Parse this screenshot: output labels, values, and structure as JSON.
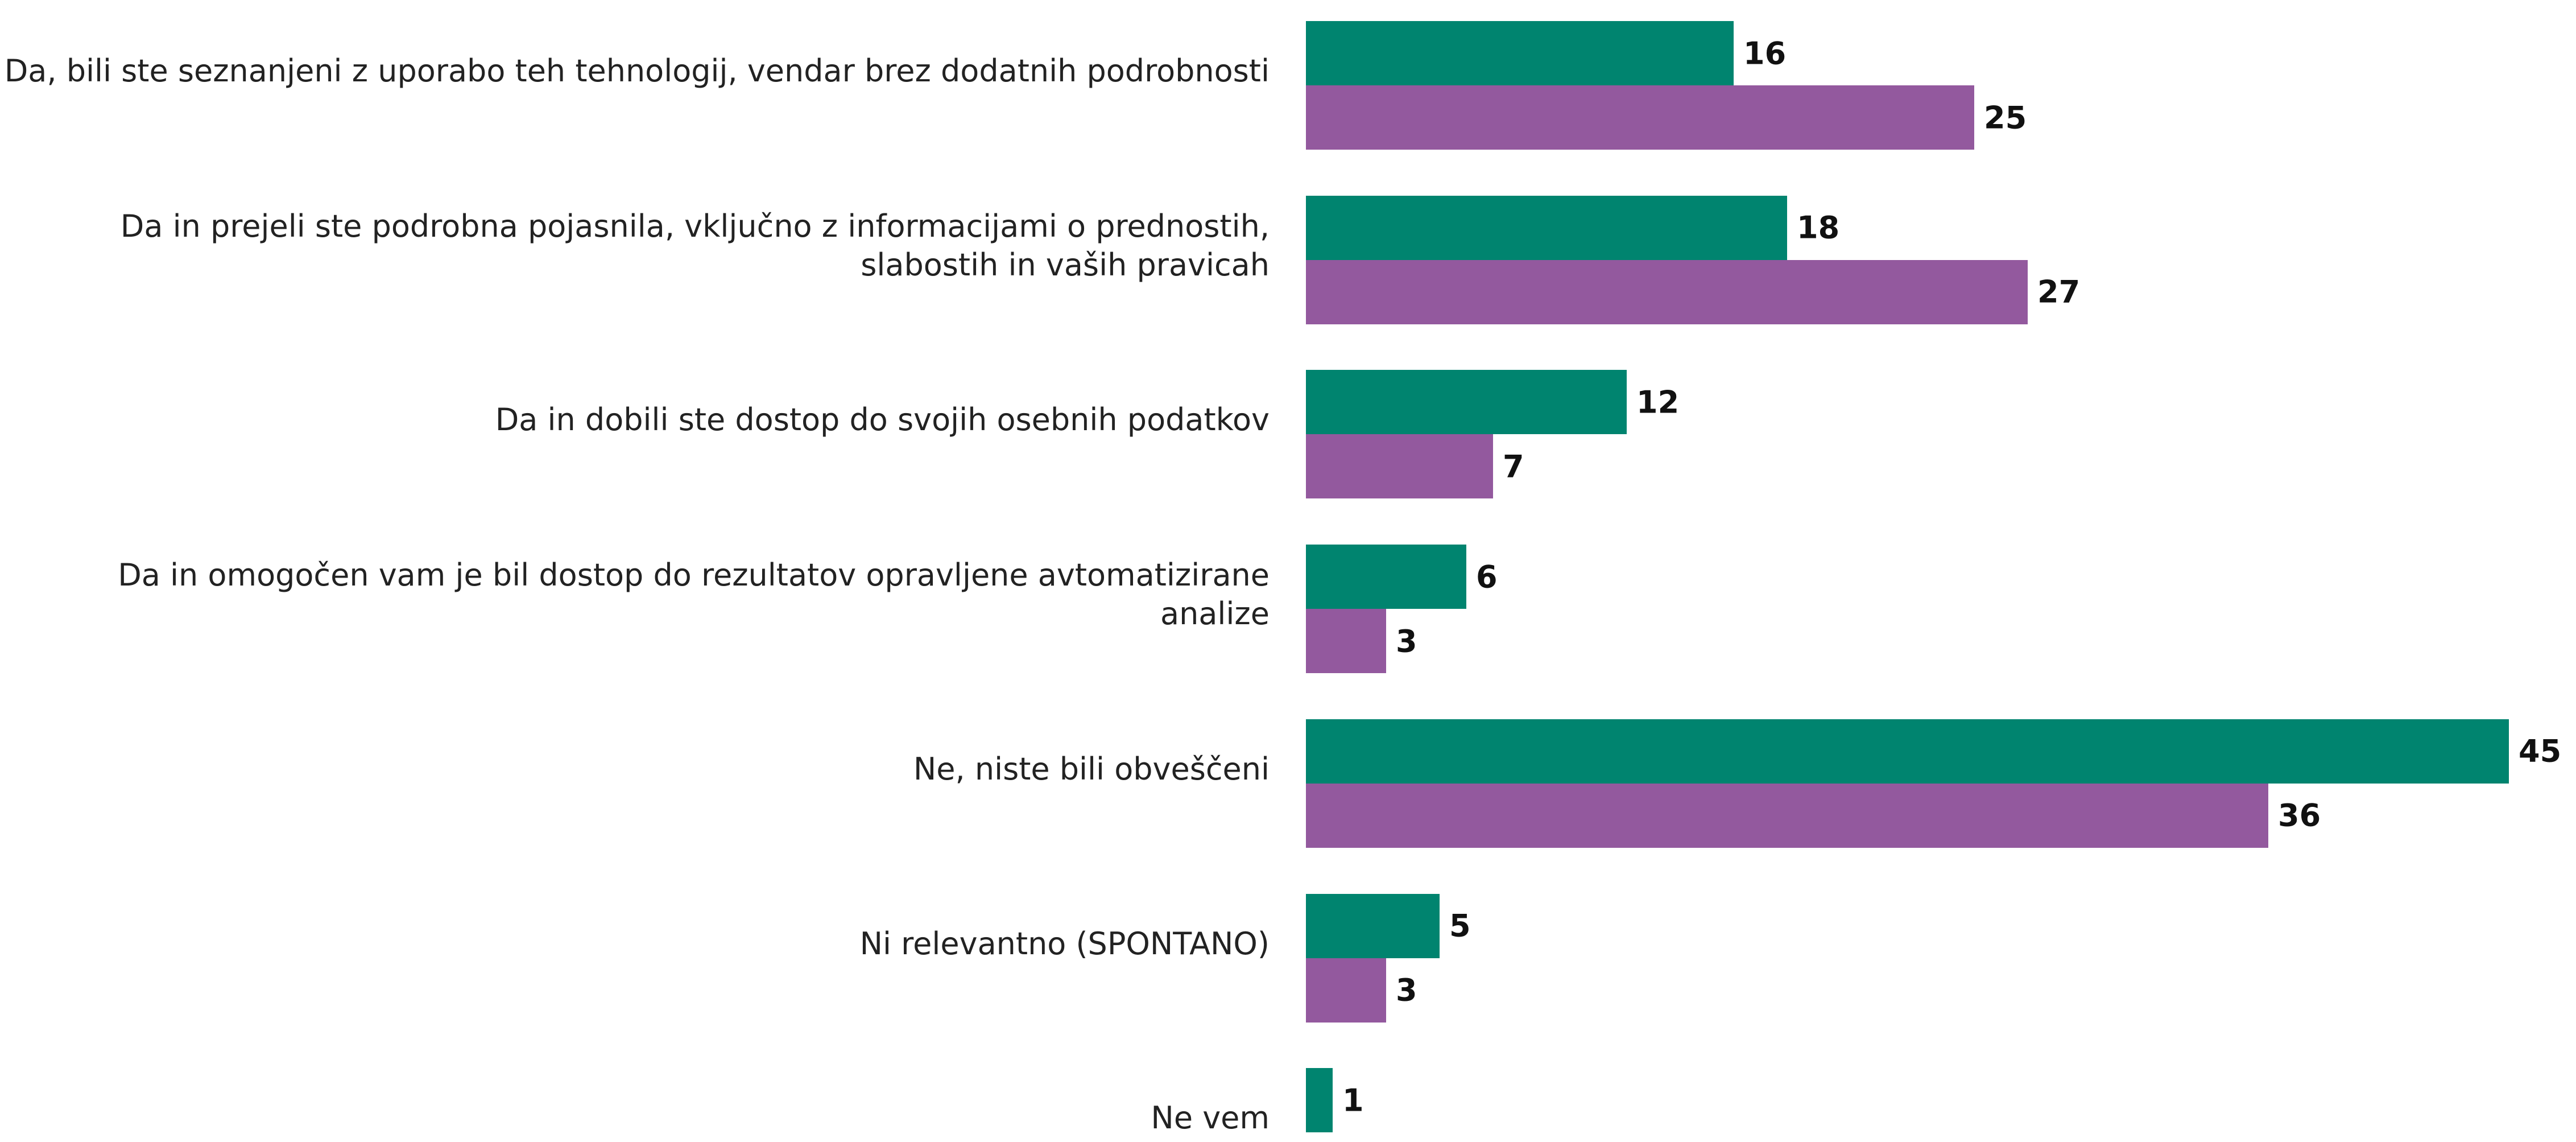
{
  "chart_data": {
    "type": "bar",
    "orientation": "horizontal",
    "categories": [
      "Da, bili ste seznanjeni z uporabo teh tehnologij, vendar brez dodatnih podrobnosti",
      "Da in prejeli ste podrobna pojasnila, vključno z informacijami o prednostih, slabostih in vaših pravicah",
      "Da in dobili ste dostop do svojih osebnih podatkov",
      "Da in omogočen vam je bil dostop do rezultatov opravljene avtomatizirane analize",
      "Ne, niste bili obveščeni",
      "Ni relevantno (SPONTANO)",
      "Ne vem"
    ],
    "series": [
      {
        "color": "#00846f",
        "values": [
          16,
          18,
          12,
          6,
          45,
          5,
          1
        ]
      },
      {
        "color": "#93599e",
        "values": [
          25,
          27,
          7,
          3,
          36,
          3,
          null
        ]
      }
    ]
  }
}
